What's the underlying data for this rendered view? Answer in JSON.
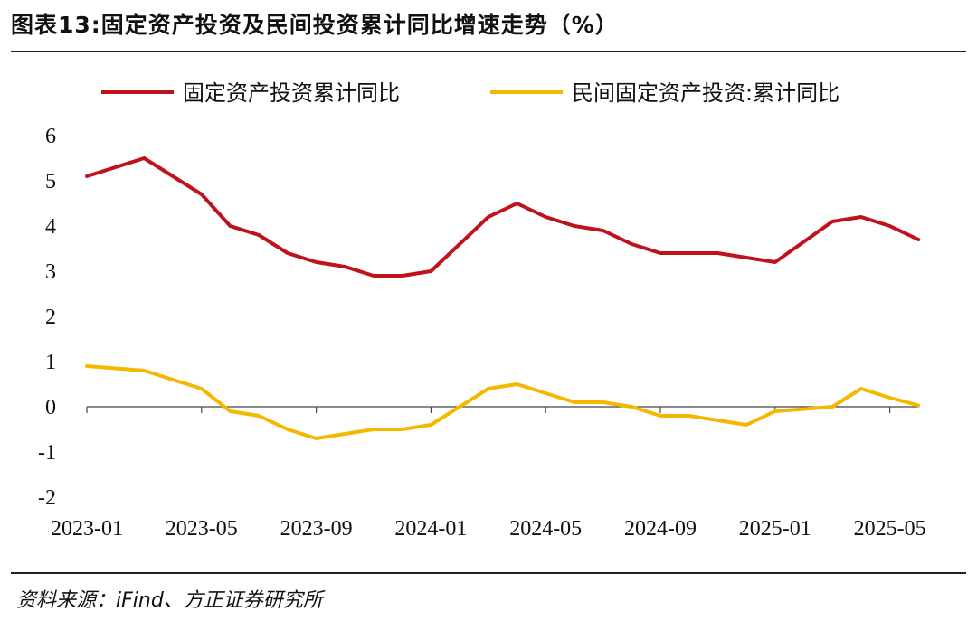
{
  "title": "图表13:固定资产投资及民间投资累计同比增速走势（%）",
  "source": "资料来源：iFind、方正证券研究所",
  "chart_data": {
    "type": "line",
    "title": "图表13:固定资产投资及民间投资累计同比增速走势（%）",
    "xlabel": "",
    "ylabel": "",
    "ylim": [
      -2,
      6
    ],
    "yticks": [
      -2,
      -1,
      0,
      1,
      2,
      3,
      4,
      5,
      6
    ],
    "grid": false,
    "legend_position": "top",
    "x": [
      "2023-01",
      "2023-02",
      "2023-03",
      "2023-04",
      "2023-05",
      "2023-06",
      "2023-07",
      "2023-08",
      "2023-09",
      "2023-10",
      "2023-11",
      "2023-12",
      "2024-01",
      "2024-02",
      "2024-03",
      "2024-04",
      "2024-05",
      "2024-06",
      "2024-07",
      "2024-08",
      "2024-09",
      "2024-10",
      "2024-11",
      "2024-12",
      "2025-01",
      "2025-02",
      "2025-03",
      "2025-04",
      "2025-05",
      "2025-06"
    ],
    "x_tick_labels": [
      "2023-01",
      "2023-05",
      "2023-09",
      "2024-01",
      "2024-05",
      "2024-09",
      "2025-01",
      "2025-05"
    ],
    "series": [
      {
        "name": "固定资产投资累计同比",
        "color": "#c0121c",
        "values": [
          5.1,
          5.3,
          5.5,
          5.1,
          4.7,
          4.0,
          3.8,
          3.4,
          3.2,
          3.1,
          2.9,
          2.9,
          3.0,
          3.6,
          4.2,
          4.5,
          4.2,
          4.0,
          3.9,
          3.6,
          3.4,
          3.4,
          3.4,
          3.3,
          3.2,
          3.65,
          4.1,
          4.2,
          4.0,
          3.7
        ]
      },
      {
        "name": "民间固定资产投资:累计同比",
        "color": "#f5b800",
        "values": [
          0.9,
          0.85,
          0.8,
          0.6,
          0.4,
          -0.1,
          -0.2,
          -0.5,
          -0.7,
          -0.6,
          -0.5,
          -0.5,
          -0.4,
          0.0,
          0.4,
          0.5,
          0.3,
          0.1,
          0.1,
          0.0,
          -0.2,
          -0.2,
          -0.3,
          -0.4,
          -0.1,
          -0.05,
          0.0,
          0.4,
          0.2,
          0.03
        ]
      }
    ]
  }
}
